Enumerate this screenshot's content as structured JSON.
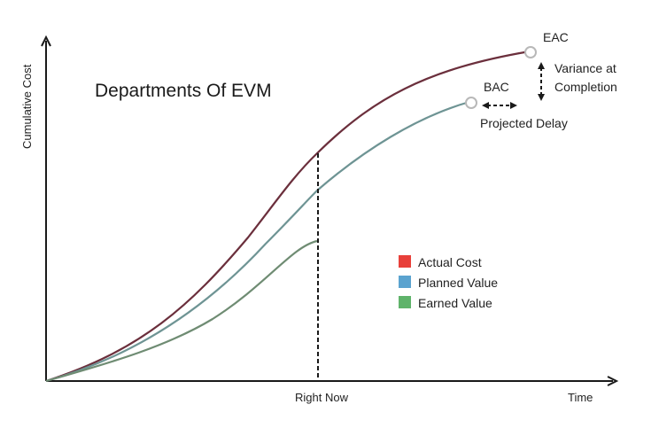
{
  "diagram": {
    "title": "Departments Of EVM",
    "y_axis_label": "Cumulative Cost",
    "x_axis_label": "Time",
    "now_marker_label": "Right Now",
    "eac_label": "EAC",
    "bac_label": "BAC",
    "variance_label_line1": "Variance at",
    "variance_label_line2": "Completion",
    "projected_delay_label": "Projected Delay",
    "legend": [
      {
        "label": "Actual Cost",
        "color": "#e8403a"
      },
      {
        "label": "Planned Value",
        "color": "#5ba3cf"
      },
      {
        "label": "Earned Value",
        "color": "#5fb36a"
      }
    ],
    "line_colors": {
      "actual_cost": "#6b2f3c",
      "planned_value": "#6e9494",
      "earned_value": "#6f8c73",
      "axes": "#1a1a1a",
      "marker": "#b8b8b8"
    }
  }
}
